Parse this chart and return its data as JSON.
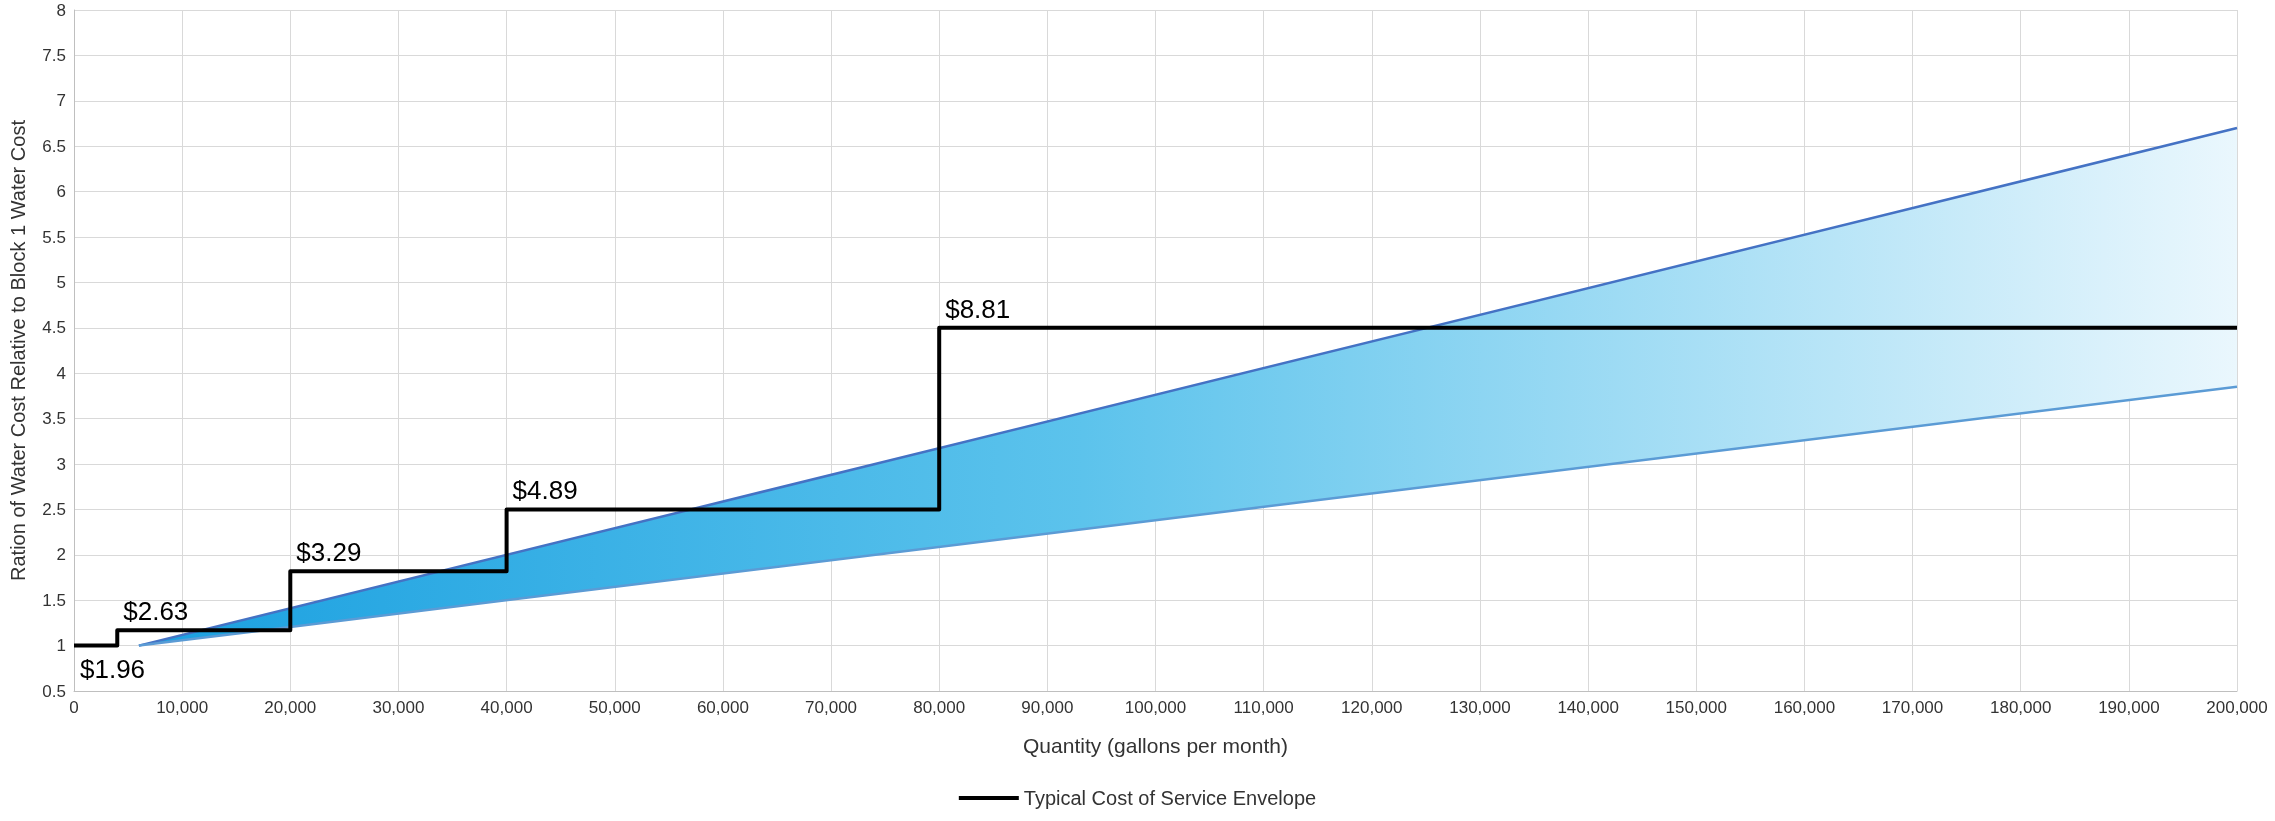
{
  "chart_data": {
    "type": "step",
    "xlabel": "Quantity (gallons per month)",
    "ylabel": "Ration of Water Cost Relative to Block 1 Water Cost",
    "xlim": [
      0,
      200000
    ],
    "xticks": [
      0,
      {
        "value": 10000,
        "label": "10,000"
      },
      {
        "value": 20000,
        "label": "20,000"
      },
      {
        "value": 30000,
        "label": "30,000"
      },
      {
        "value": 40000,
        "label": "40,000"
      },
      {
        "value": 50000,
        "label": "50,000"
      },
      {
        "value": 60000,
        "label": "60,000"
      },
      {
        "value": 70000,
        "label": "70,000"
      },
      {
        "value": 80000,
        "label": "80,000"
      },
      {
        "value": 90000,
        "label": "90,000"
      },
      {
        "value": 100000,
        "label": "100,000"
      },
      {
        "value": 110000,
        "label": "110,000"
      },
      {
        "value": 120000,
        "label": "120,000"
      },
      {
        "value": 130000,
        "label": "130,000"
      },
      {
        "value": 140000,
        "label": "140,000"
      },
      {
        "value": 150000,
        "label": "150,000"
      },
      {
        "value": 160000,
        "label": "160,000"
      },
      {
        "value": 170000,
        "label": "170,000"
      },
      {
        "value": 180000,
        "label": "180,000"
      },
      {
        "value": 190000,
        "label": "190,000"
      },
      {
        "value": 200000,
        "label": "200,000"
      }
    ],
    "ylim": [
      0.5,
      8
    ],
    "yticks": [
      0.5,
      1,
      1.5,
      2,
      2.5,
      3,
      3.5,
      4,
      4.5,
      5,
      5.5,
      6,
      6.5,
      7,
      7.5,
      8
    ],
    "grid": true,
    "legend": "bottom",
    "marker": "none",
    "series": [
      {
        "type": "area",
        "color": "#4472c4",
        "x": [
          6000,
          200000
        ],
        "values": [
          1,
          6.7
        ]
      },
      {
        "type": "line",
        "color": "#5b9bd5",
        "x": [
          6000,
          200000
        ],
        "values": [
          1,
          3.85
        ]
      },
      {
        "name": "Typical Cost of Service Envelope",
        "color": "#000000",
        "x": [
          0,
          4000,
          20000,
          40000,
          80000,
          200000
        ],
        "values": [
          1,
          1.17,
          1.82,
          2.5,
          4.5,
          4.5
        ]
      }
    ],
    "annotations": [
      {
        "text": "$1.96",
        "x": 0,
        "y": 1
      },
      {
        "text": "$2.63",
        "x": 4000,
        "y": 1.17
      },
      {
        "text": "$3.29",
        "x": 20000,
        "y": 1.82
      },
      {
        "text": "$4.89",
        "x": 40000,
        "y": 2.5
      },
      {
        "text": "$8.81",
        "x": 80000,
        "y": 4.5
      }
    ]
  }
}
